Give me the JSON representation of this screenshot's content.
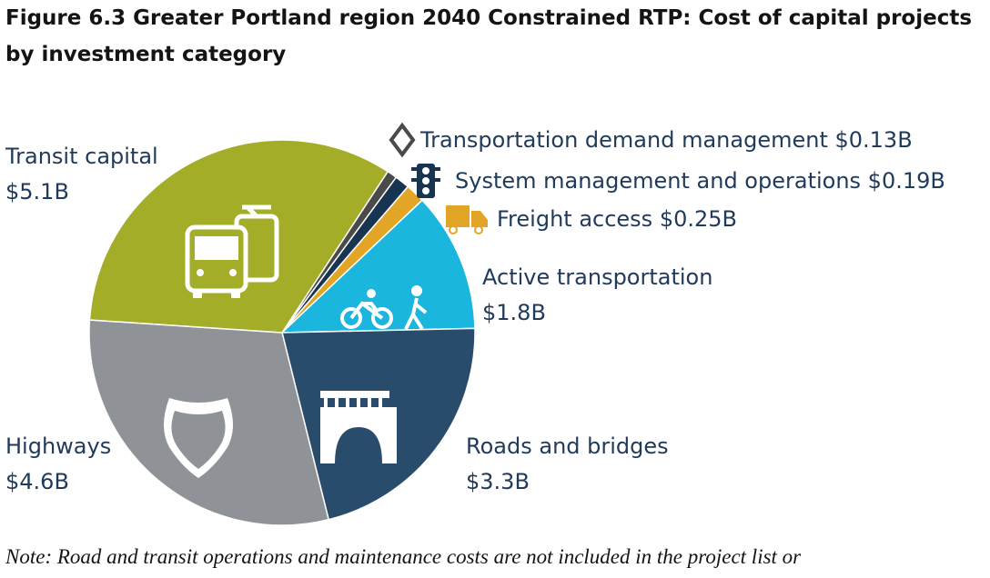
{
  "chart_data": {
    "type": "pie",
    "title": "Figure 6.3 Greater Portland region 2040 Constrained RTP: Cost of capital projects by investment category",
    "unit": "billion USD",
    "slices": [
      {
        "name": "Transportation demand management",
        "value": 0.13,
        "value_label": "$0.13B",
        "color": "#4a4a4a",
        "icon": "diamond-icon"
      },
      {
        "name": "System management and operations",
        "value": 0.19,
        "value_label": "$0.19B",
        "color": "#173451",
        "icon": "traffic-light-icon"
      },
      {
        "name": "Freight access",
        "value": 0.25,
        "value_label": "$0.25B",
        "color": "#e3a526",
        "icon": "delivery-truck-icon"
      },
      {
        "name": "Active transportation",
        "value": 1.8,
        "value_label": "$1.8B",
        "color": "#1ab6dd",
        "icon": "bike-and-pedestrian-icon"
      },
      {
        "name": "Roads and bridges",
        "value": 3.3,
        "value_label": "$3.3B",
        "color": "#2a4c6c",
        "icon": "bridge-icon"
      },
      {
        "name": "Highways",
        "value": 4.6,
        "value_label": "$4.6B",
        "color": "#8f9398",
        "icon": "highway-shield-icon"
      },
      {
        "name": "Transit capital",
        "value": 5.1,
        "value_label": "$5.1B",
        "color": "#a4ad27",
        "icon": "bus-and-streetcar-icon"
      }
    ],
    "legend": "labels placed around pie"
  },
  "labels": {
    "tdm": "Transportation demand management $0.13B",
    "smo": "System management and operations $0.19B",
    "freight": "Freight access $0.25B",
    "active_name": "Active transportation",
    "active_value": "$1.8B",
    "roads_name": "Roads and bridges",
    "roads_value": "$3.3B",
    "highways_name": "Highways",
    "highways_value": "$4.6B",
    "transit_name": "Transit capital",
    "transit_value": "$5.1B"
  },
  "note": "Note: Road and transit operations and maintenance costs are not included in the project list or"
}
